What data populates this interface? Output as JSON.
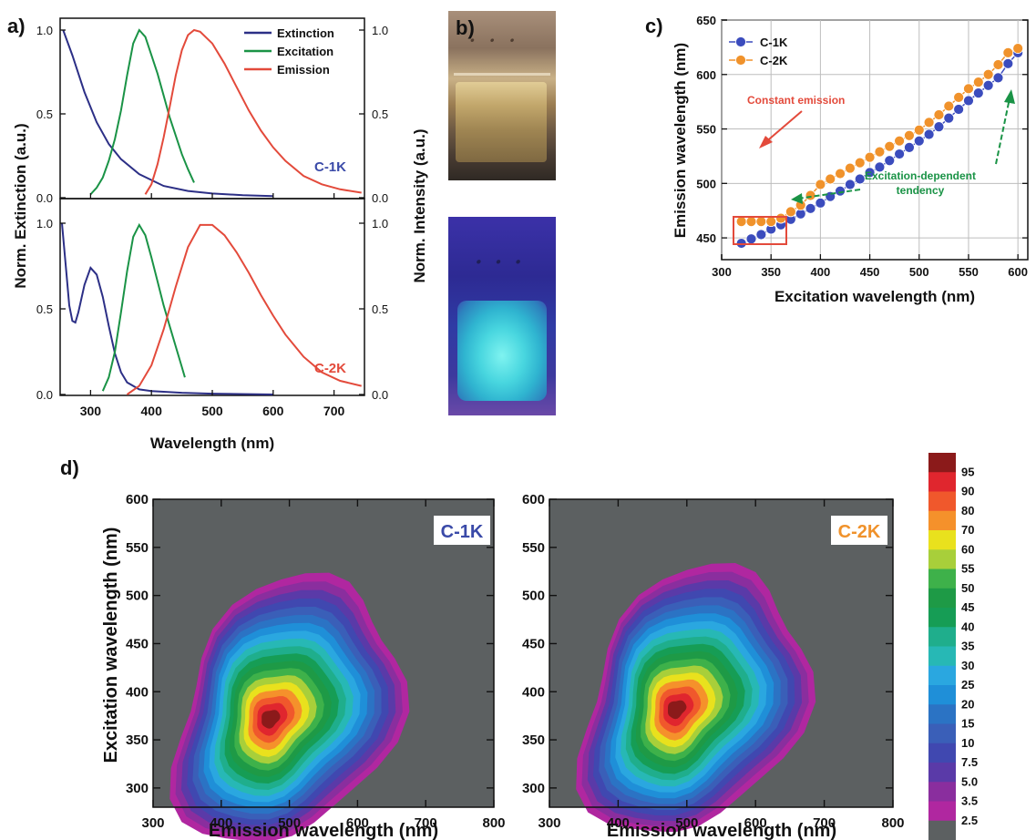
{
  "panels": {
    "a": "a)",
    "b": "b)",
    "c": "c)",
    "d": "d)"
  },
  "chart_data": [
    {
      "id": "a",
      "type": "line",
      "xlabel": "Wavelength (nm)",
      "ylabel_left": "Norm. Extinction (a.u.)",
      "ylabel_right": "Norm. Intensity (a.u.)",
      "xlim": [
        250,
        750
      ],
      "xticks": [
        "300",
        "400",
        "500",
        "600",
        "700"
      ],
      "yticks_left": [
        "0.0",
        "0.5",
        "1.0"
      ],
      "yticks_right": [
        "0.0",
        "0.5",
        "1.0"
      ],
      "legend": [
        {
          "name": "Extinction",
          "color": "#2c2f86"
        },
        {
          "name": "Excitation",
          "color": "#1a9346"
        },
        {
          "name": "Emission",
          "color": "#e34a3b"
        }
      ],
      "subplots": [
        {
          "label": "C-1K",
          "label_color": "#3a4aa8",
          "series": [
            {
              "name": "Extinction",
              "color": "#2c2f86",
              "x": [
                255,
                270,
                290,
                310,
                330,
                350,
                380,
                420,
                460,
                500,
                550,
                600
              ],
              "y": [
                1.0,
                0.85,
                0.63,
                0.45,
                0.32,
                0.23,
                0.14,
                0.07,
                0.04,
                0.025,
                0.015,
                0.01
              ]
            },
            {
              "name": "Excitation",
              "color": "#1a9346",
              "x": [
                300,
                310,
                320,
                330,
                340,
                350,
                360,
                370,
                380,
                390,
                400,
                410,
                420,
                430,
                440,
                450,
                460,
                470
              ],
              "y": [
                0.02,
                0.06,
                0.12,
                0.22,
                0.35,
                0.52,
                0.73,
                0.92,
                1.0,
                0.96,
                0.85,
                0.74,
                0.61,
                0.48,
                0.37,
                0.26,
                0.17,
                0.09
              ]
            },
            {
              "name": "Emission",
              "color": "#e34a3b",
              "x": [
                390,
                400,
                410,
                420,
                430,
                440,
                450,
                460,
                470,
                480,
                500,
                520,
                540,
                560,
                580,
                600,
                620,
                650,
                680,
                710,
                745
              ],
              "y": [
                0.02,
                0.08,
                0.2,
                0.36,
                0.54,
                0.73,
                0.88,
                0.97,
                1.0,
                0.99,
                0.92,
                0.8,
                0.66,
                0.52,
                0.4,
                0.3,
                0.22,
                0.13,
                0.08,
                0.05,
                0.03
              ]
            }
          ]
        },
        {
          "label": "C-2K",
          "label_color": "#e34a3b",
          "series": [
            {
              "name": "Extinction",
              "color": "#2c2f86",
              "x": [
                253,
                260,
                265,
                270,
                275,
                280,
                290,
                300,
                310,
                320,
                330,
                340,
                350,
                360,
                380,
                400,
                450,
                500,
                600
              ],
              "y": [
                1.0,
                0.72,
                0.52,
                0.43,
                0.42,
                0.48,
                0.64,
                0.74,
                0.7,
                0.57,
                0.4,
                0.24,
                0.13,
                0.07,
                0.03,
                0.02,
                0.01,
                0.005,
                0.0
              ]
            },
            {
              "name": "Excitation",
              "color": "#1a9346",
              "x": [
                320,
                330,
                340,
                350,
                360,
                370,
                380,
                390,
                400,
                410,
                420,
                430,
                440,
                450,
                455
              ],
              "y": [
                0.02,
                0.1,
                0.25,
                0.48,
                0.72,
                0.92,
                0.99,
                0.93,
                0.8,
                0.66,
                0.52,
                0.4,
                0.28,
                0.16,
                0.1
              ]
            },
            {
              "name": "Emission",
              "color": "#e34a3b",
              "x": [
                360,
                380,
                400,
                420,
                440,
                460,
                480,
                500,
                520,
                540,
                560,
                580,
                600,
                620,
                650,
                680,
                710,
                745
              ],
              "y": [
                0.0,
                0.05,
                0.17,
                0.38,
                0.63,
                0.86,
                0.99,
                0.99,
                0.93,
                0.83,
                0.71,
                0.58,
                0.46,
                0.35,
                0.22,
                0.13,
                0.08,
                0.05
              ]
            }
          ]
        }
      ]
    },
    {
      "id": "c",
      "type": "scatter",
      "xlabel": "Excitation wavelength (nm)",
      "ylabel": "Emission wavelength (nm)",
      "xlim": [
        300,
        610
      ],
      "ylim": [
        430,
        650
      ],
      "xticks": [
        "300",
        "350",
        "400",
        "450",
        "500",
        "550",
        "600"
      ],
      "yticks": [
        "450",
        "500",
        "550",
        "600",
        "650"
      ],
      "series": [
        {
          "name": "C-1K",
          "color": "#3b4cbd",
          "x": [
            320,
            330,
            340,
            350,
            360,
            370,
            380,
            390,
            400,
            410,
            420,
            430,
            440,
            450,
            460,
            470,
            480,
            490,
            500,
            510,
            520,
            530,
            540,
            550,
            560,
            570,
            580,
            590,
            600
          ],
          "y": [
            445,
            449,
            453,
            458,
            462,
            467,
            472,
            477,
            482,
            488,
            493,
            499,
            504,
            510,
            515,
            521,
            527,
            533,
            539,
            545,
            552,
            560,
            568,
            576,
            583,
            590,
            597,
            610,
            620
          ]
        },
        {
          "name": "C-2K",
          "color": "#f0922b",
          "x": [
            320,
            330,
            340,
            350,
            360,
            370,
            380,
            390,
            400,
            410,
            420,
            430,
            440,
            450,
            460,
            470,
            480,
            490,
            500,
            510,
            520,
            530,
            540,
            550,
            560,
            570,
            580,
            590,
            600
          ],
          "y": [
            465,
            465,
            465,
            465,
            468,
            474,
            480,
            489,
            499,
            504,
            509,
            514,
            519,
            524,
            529,
            534,
            539,
            544,
            549,
            556,
            563,
            571,
            579,
            587,
            593,
            600,
            609,
            620,
            624
          ]
        }
      ],
      "annotations": [
        "Constant emission",
        "Excitation-dependent",
        "tendency"
      ]
    },
    {
      "id": "d",
      "type": "heatmap",
      "xlabel": "Emission wavelength (nm)",
      "ylabel": "Excitation wavelength (nm)",
      "xlim": [
        300,
        800
      ],
      "ylim": [
        280,
        600
      ],
      "xticks": [
        "300",
        "400",
        "500",
        "600",
        "700",
        "800"
      ],
      "yticks": [
        "300",
        "350",
        "400",
        "450",
        "500",
        "550",
        "600"
      ],
      "colorbar_labels": [
        "95",
        "90",
        "80",
        "70",
        "60",
        "55",
        "50",
        "45",
        "40",
        "35",
        "30",
        "25",
        "20",
        "15",
        "10",
        "7.5",
        "5.0",
        "3.5",
        "2.5"
      ],
      "colorbar_colors": [
        "#8b1a1a",
        "#e0262e",
        "#f0582c",
        "#f5912b",
        "#e9e11d",
        "#a8cf3a",
        "#3eb14a",
        "#1e9a46",
        "#169d55",
        "#1fae8c",
        "#27b8b5",
        "#2aa7e0",
        "#1f8fd8",
        "#2b73c4",
        "#3a5fb8",
        "#4048b0",
        "#5a3aa8",
        "#8a2e9e",
        "#b027a0",
        "#5c6061"
      ],
      "maps": [
        {
          "label": "C-1K",
          "label_color": "#3a4aa8",
          "peak": {
            "emission": 472,
            "excitation": 372,
            "value": 95
          }
        },
        {
          "label": "C-2K",
          "label_color": "#f0922b",
          "peak": {
            "emission": 485,
            "excitation": 382,
            "value": 95
          }
        }
      ]
    }
  ]
}
